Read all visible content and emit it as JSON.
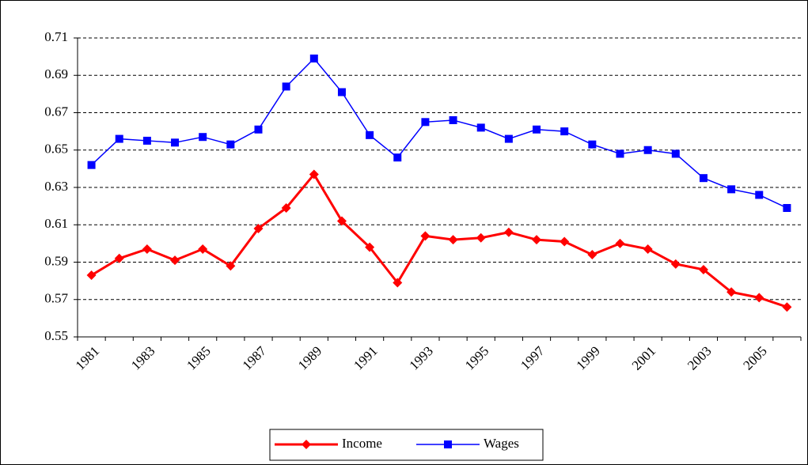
{
  "chart_data": {
    "type": "line",
    "categories": [
      "1981",
      null,
      "1983",
      null,
      "1985",
      null,
      "1987",
      null,
      "1989",
      null,
      "1991",
      null,
      "1993",
      null,
      "1995",
      null,
      "1997",
      null,
      "1999",
      null,
      "2001",
      null,
      "2003",
      null,
      "2005",
      null
    ],
    "series": [
      {
        "name": "Income",
        "color": "#ff0000",
        "marker": "diamond",
        "values": [
          0.583,
          0.592,
          0.597,
          0.591,
          0.597,
          0.588,
          0.608,
          0.619,
          0.637,
          0.612,
          0.598,
          0.579,
          0.604,
          0.602,
          0.603,
          0.606,
          0.602,
          0.601,
          0.594,
          0.6,
          0.597,
          0.589,
          0.586,
          0.574,
          0.571,
          0.566
        ]
      },
      {
        "name": "Wages",
        "color": "#0000ff",
        "marker": "square",
        "values": [
          0.642,
          0.656,
          0.655,
          0.654,
          0.657,
          0.653,
          0.661,
          0.684,
          0.699,
          0.681,
          0.658,
          0.646,
          0.665,
          0.666,
          0.662,
          0.656,
          0.661,
          0.66,
          0.653,
          0.648,
          0.65,
          0.648,
          0.635,
          0.629,
          0.626,
          0.619
        ]
      }
    ],
    "ylim": [
      0.55,
      0.71
    ],
    "yticks": [
      0.55,
      0.57,
      0.59,
      0.61,
      0.63,
      0.65,
      0.67,
      0.69,
      0.71
    ],
    "grid": true,
    "legend": "bottom"
  }
}
